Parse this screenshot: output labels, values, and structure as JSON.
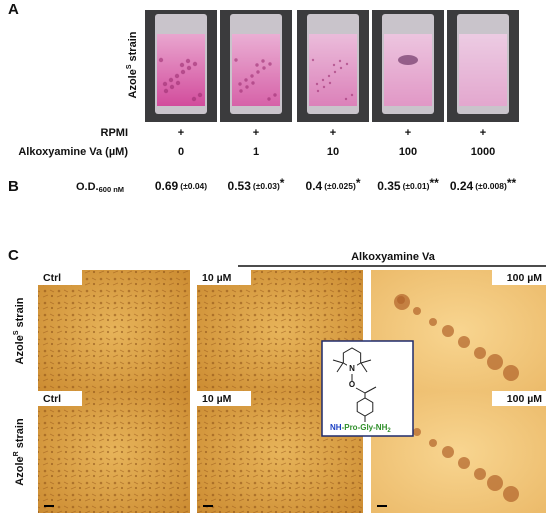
{
  "panel_a": {
    "label": "A",
    "row_label": {
      "main": "Azole",
      "sup": "S",
      "tail": "strain"
    },
    "rpmi_label": "RPMI",
    "rpmi_marks": [
      "+",
      "+",
      "+",
      "+",
      "+"
    ],
    "concentration_label": "Alkoxyamine Va (µM)",
    "concentrations": [
      "0",
      "1",
      "10",
      "100",
      "1000"
    ]
  },
  "panel_b": {
    "label": "B",
    "od_label": {
      "main": "O.D.",
      "sub": "600 nM"
    },
    "measurements": [
      {
        "value": "0.69",
        "sd": "(±0.04)"
      },
      {
        "value": "0.53",
        "sd": "(±0.03)",
        "significance": "*"
      },
      {
        "value": "0.4",
        "sd": "(±0.025)",
        "significance": "*"
      },
      {
        "value": "0.35",
        "sd": "(±0.01)",
        "significance": "**"
      },
      {
        "value": "0.24",
        "sd": "(±0.008)",
        "significance": "**"
      }
    ]
  },
  "panel_c": {
    "label": "C",
    "header": "Alkoxyamine Va",
    "rows": [
      {
        "label": {
          "main": "Azole",
          "sup": "S",
          "tail": "strain"
        },
        "images": [
          "Ctrl",
          "10 µM",
          "100 µM"
        ]
      },
      {
        "label": {
          "main": "Azole",
          "sup": "R",
          "tail": "strain"
        },
        "images": [
          "Ctrl",
          "10 µM",
          "100 µM"
        ]
      }
    ],
    "structure": {
      "ring_atom": "N",
      "linker_atom": "O",
      "amine": "NH",
      "peptide": "-Pro-Gly-NH",
      "peptide_sub": "2"
    }
  }
}
